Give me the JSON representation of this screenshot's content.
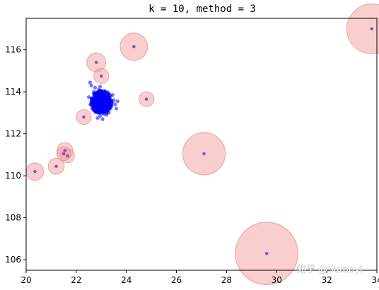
{
  "chart_data": {
    "type": "scatter",
    "title": "k = 10, method = 3",
    "xlabel": "",
    "ylabel": "",
    "xlim": [
      20,
      34
    ],
    "ylim": [
      105.5,
      117.5
    ],
    "xticks": [
      20,
      22,
      24,
      26,
      28,
      30,
      32,
      34
    ],
    "yticks": [
      106,
      108,
      110,
      112,
      114,
      116
    ],
    "grid": false,
    "colors": {
      "cluster": "#0000ff",
      "outlier_point": "#7a3fbf",
      "outlier_ring": "#f4a6a6",
      "ring_edge": "#e07878"
    },
    "series": [
      {
        "role": "outliers",
        "points": [
          {
            "x": 33.8,
            "y": 117.0,
            "r": 1.0
          },
          {
            "x": 24.3,
            "y": 116.15,
            "r": 0.55
          },
          {
            "x": 22.8,
            "y": 115.4,
            "r": 0.38
          },
          {
            "x": 23.0,
            "y": 114.75,
            "r": 0.3
          },
          {
            "x": 24.8,
            "y": 113.65,
            "r": 0.3
          },
          {
            "x": 22.3,
            "y": 112.8,
            "r": 0.3
          },
          {
            "x": 21.55,
            "y": 111.2,
            "r": 0.32
          },
          {
            "x": 21.65,
            "y": 110.95,
            "r": 0.28
          },
          {
            "x": 21.5,
            "y": 111.05,
            "r": 0.28
          },
          {
            "x": 21.2,
            "y": 110.45,
            "r": 0.32
          },
          {
            "x": 20.35,
            "y": 110.2,
            "r": 0.35
          },
          {
            "x": 27.1,
            "y": 111.05,
            "r": 0.85
          },
          {
            "x": 29.6,
            "y": 106.3,
            "r": 1.25
          }
        ]
      },
      {
        "role": "cluster",
        "center": [
          23.0,
          113.5
        ],
        "points": [
          [
            22.55,
            114.45
          ],
          [
            22.6,
            114.3
          ],
          [
            22.75,
            114.2
          ],
          [
            22.9,
            114.1
          ],
          [
            23.1,
            113.95
          ],
          [
            22.7,
            113.9
          ],
          [
            22.5,
            113.75
          ],
          [
            23.3,
            113.7
          ],
          [
            23.5,
            113.6
          ],
          [
            23.55,
            113.4
          ],
          [
            23.35,
            113.2
          ],
          [
            23.1,
            112.95
          ],
          [
            22.95,
            112.85
          ],
          [
            23.05,
            112.7
          ],
          [
            23.2,
            112.9
          ],
          [
            23.3,
            113.0
          ],
          [
            22.8,
            113.3
          ],
          [
            22.85,
            113.6
          ],
          [
            23.0,
            113.5
          ],
          [
            22.65,
            113.5
          ],
          [
            23.45,
            113.85
          ],
          [
            23.6,
            113.2
          ],
          [
            23.25,
            113.45
          ],
          [
            22.9,
            113.0
          ],
          [
            23.15,
            113.25
          ],
          [
            22.7,
            114.0
          ],
          [
            23.4,
            113.3
          ],
          [
            22.95,
            114.25
          ],
          [
            23.65,
            113.55
          ],
          [
            22.85,
            112.75
          ]
        ]
      }
    ],
    "watermark": "知乎 @Suranyi"
  }
}
